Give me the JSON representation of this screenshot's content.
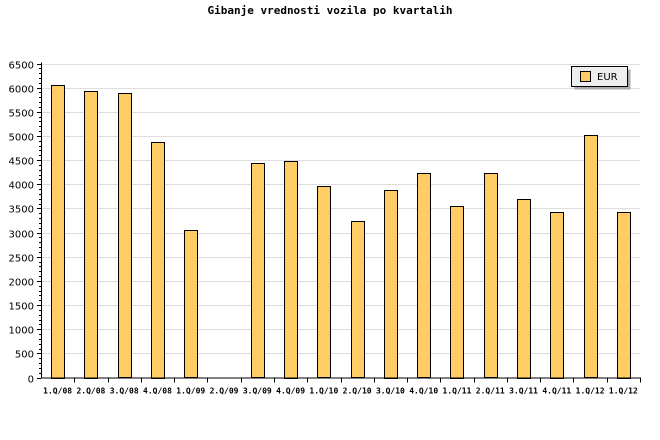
{
  "chart_data": {
    "type": "bar",
    "title": "Gibanje vrednosti vozila po kvartalih",
    "xlabel": "",
    "ylabel": "",
    "categories": [
      "1.Q/08",
      "2.Q/08",
      "3.Q/08",
      "4.Q/08",
      "1.Q/09",
      "2.Q/09",
      "3.Q/09",
      "4.Q/09",
      "1.Q/10",
      "2.Q/10",
      "3.Q/10",
      "4.Q/10",
      "1.Q/11",
      "2.Q/11",
      "3.Q/11",
      "4.Q/11",
      "1.Q/12",
      "1.Q/12"
    ],
    "series": [
      {
        "name": "EUR",
        "color": "#FFCC66",
        "values": [
          6060,
          5940,
          5880,
          4885,
          3045,
          0,
          4430,
          4490,
          3955,
          3230,
          3890,
          4225,
          3560,
          4225,
          3705,
          3435,
          5010,
          3435
        ]
      }
    ],
    "ylim": [
      0,
      6500
    ],
    "yticks": [
      0,
      500,
      1000,
      1500,
      2000,
      2500,
      3000,
      3500,
      4000,
      4500,
      5000,
      5500,
      6000,
      6500
    ],
    "grid": true,
    "legend": "top-right"
  }
}
